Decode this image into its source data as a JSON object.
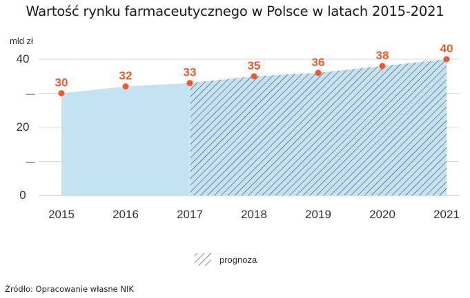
{
  "chart_data": {
    "type": "area",
    "title": "Wartość rynku farmaceutycznego w Polsce w latach 2015-2021",
    "unit_label": "mld zł",
    "categories": [
      "2015",
      "2016",
      "2017",
      "2018",
      "2019",
      "2020",
      "2021"
    ],
    "series": [
      {
        "values": [
          30,
          32,
          33,
          35,
          36,
          38,
          40
        ]
      }
    ],
    "data_labels": [
      "30",
      "32",
      "33",
      "35",
      "36",
      "38",
      "40"
    ],
    "y_tick_labels": [
      {
        "value": 0,
        "label": "0"
      },
      {
        "value": 10,
        "label": "—"
      },
      {
        "value": 20,
        "label": "20"
      },
      {
        "value": 30,
        "label": "—"
      },
      {
        "value": 40,
        "label": "40"
      }
    ],
    "ylim": [
      0,
      42
    ],
    "forecast_from": "2017",
    "legend": {
      "label": "prognoza",
      "position": "bottom-center"
    },
    "colors": {
      "area": "#c5e2f3",
      "hatch": "#2a3b52",
      "point": "#ee5a2b",
      "label": "#ee5a2b",
      "grid": "#d8d8d8"
    },
    "grid": true
  },
  "footer": {
    "source": "Źródło: Opracowanie własne NIK"
  }
}
